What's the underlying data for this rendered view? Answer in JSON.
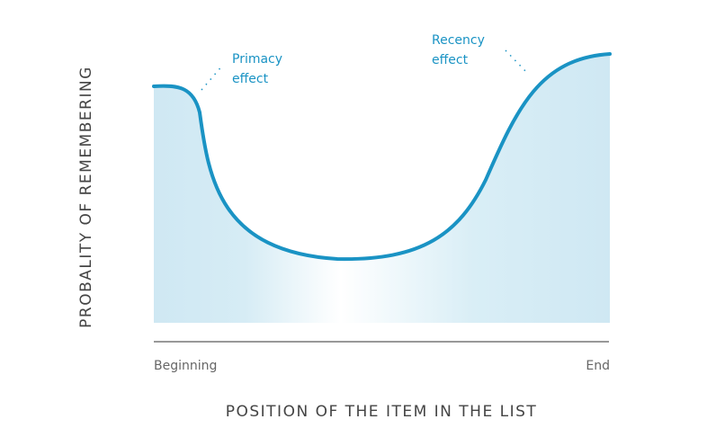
{
  "y_axis_label": "PROBALITY OF REMEMBERING",
  "x_axis_label": "POSITION OF THE ITEM IN THE LIST",
  "x_start": "Beginning",
  "x_end": "End",
  "annotations": [
    {
      "lines": [
        "Primacy",
        "effect"
      ]
    },
    {
      "lines": [
        "Recency",
        "effect"
      ]
    }
  ]
}
